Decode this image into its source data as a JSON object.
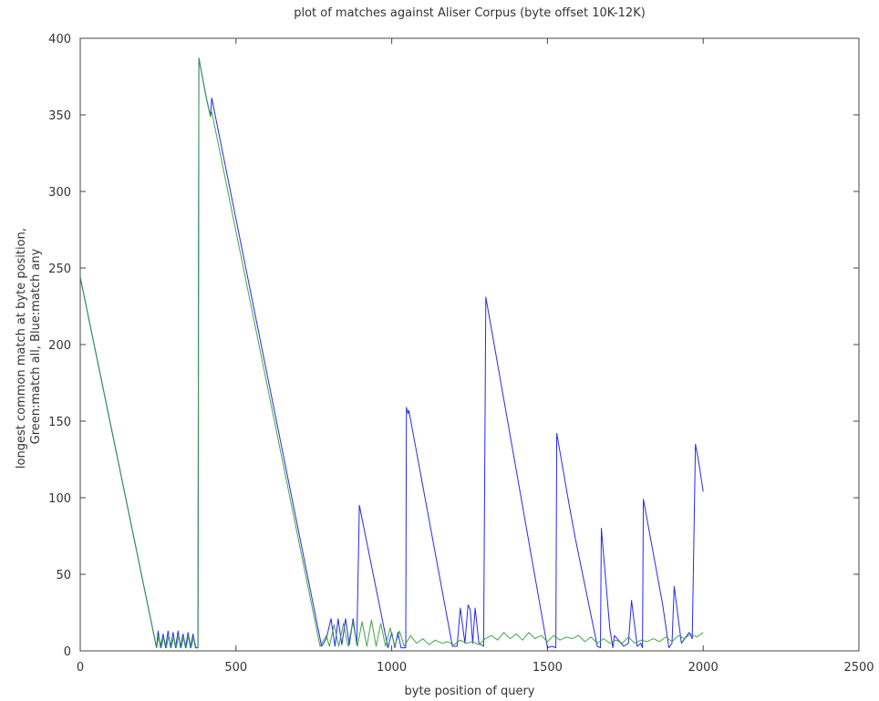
{
  "chart_data": {
    "type": "line",
    "title": "plot of matches against Aliser Corpus (byte offset 10K-12K)",
    "xlabel": "byte position of query",
    "ylabel_lines": [
      "longest common match at byte position,",
      "Green:match all, Blue:match any"
    ],
    "xlim": [
      0,
      2500
    ],
    "ylim": [
      0,
      400
    ],
    "xticks": [
      0,
      500,
      1000,
      1500,
      2000,
      2500
    ],
    "yticks": [
      0,
      50,
      100,
      150,
      200,
      250,
      300,
      350,
      400
    ],
    "grid": false,
    "series": [
      {
        "color": "#0000ff",
        "points": [
          [
            0,
            244
          ],
          [
            245,
            2
          ],
          [
            250,
            13
          ],
          [
            258,
            2
          ],
          [
            266,
            11
          ],
          [
            274,
            2
          ],
          [
            282,
            13
          ],
          [
            290,
            2
          ],
          [
            298,
            12
          ],
          [
            306,
            2
          ],
          [
            314,
            13
          ],
          [
            322,
            2
          ],
          [
            330,
            11
          ],
          [
            338,
            2
          ],
          [
            346,
            12
          ],
          [
            354,
            2
          ],
          [
            362,
            11
          ],
          [
            370,
            2
          ],
          [
            378,
            2
          ],
          [
            381,
            387
          ],
          [
            405,
            361
          ],
          [
            418,
            349
          ],
          [
            422,
            361
          ],
          [
            775,
            3
          ],
          [
            790,
            8
          ],
          [
            805,
            21
          ],
          [
            818,
            3
          ],
          [
            828,
            21
          ],
          [
            840,
            4
          ],
          [
            852,
            21
          ],
          [
            864,
            4
          ],
          [
            876,
            21
          ],
          [
            888,
            4
          ],
          [
            896,
            95
          ],
          [
            988,
            2
          ],
          [
            1000,
            12
          ],
          [
            1010,
            2
          ],
          [
            1020,
            12
          ],
          [
            1030,
            2
          ],
          [
            1045,
            2
          ],
          [
            1047,
            159
          ],
          [
            1052,
            155
          ],
          [
            1055,
            157
          ],
          [
            1195,
            3
          ],
          [
            1210,
            3
          ],
          [
            1220,
            28
          ],
          [
            1235,
            5
          ],
          [
            1245,
            30
          ],
          [
            1252,
            27
          ],
          [
            1260,
            5
          ],
          [
            1268,
            28
          ],
          [
            1280,
            5
          ],
          [
            1295,
            3
          ],
          [
            1302,
            231
          ],
          [
            1500,
            2
          ],
          [
            1515,
            3
          ],
          [
            1527,
            2
          ],
          [
            1530,
            142
          ],
          [
            1570,
            95
          ],
          [
            1590,
            73
          ],
          [
            1660,
            3
          ],
          [
            1670,
            2
          ],
          [
            1673,
            80
          ],
          [
            1700,
            15
          ],
          [
            1710,
            2
          ],
          [
            1715,
            10
          ],
          [
            1745,
            3
          ],
          [
            1760,
            5
          ],
          [
            1770,
            33
          ],
          [
            1788,
            3
          ],
          [
            1800,
            5
          ],
          [
            1805,
            2
          ],
          [
            1808,
            99
          ],
          [
            1870,
            30
          ],
          [
            1890,
            2
          ],
          [
            1900,
            5
          ],
          [
            1907,
            42
          ],
          [
            1930,
            5
          ],
          [
            1955,
            12
          ],
          [
            1965,
            8
          ],
          [
            1975,
            135
          ],
          [
            1985,
            124
          ],
          [
            2000,
            104
          ]
        ]
      },
      {
        "color": "#2e9e2e",
        "points": [
          [
            0,
            244
          ],
          [
            245,
            2
          ],
          [
            252,
            10
          ],
          [
            260,
            2
          ],
          [
            268,
            9
          ],
          [
            276,
            2
          ],
          [
            284,
            10
          ],
          [
            292,
            2
          ],
          [
            300,
            9
          ],
          [
            308,
            2
          ],
          [
            316,
            10
          ],
          [
            324,
            2
          ],
          [
            332,
            9
          ],
          [
            340,
            2
          ],
          [
            348,
            10
          ],
          [
            356,
            2
          ],
          [
            364,
            9
          ],
          [
            372,
            2
          ],
          [
            378,
            2
          ],
          [
            381,
            387
          ],
          [
            405,
            361
          ],
          [
            418,
            349
          ],
          [
            422,
            352
          ],
          [
            770,
            3
          ],
          [
            790,
            10
          ],
          [
            800,
            3
          ],
          [
            815,
            17
          ],
          [
            830,
            3
          ],
          [
            845,
            18
          ],
          [
            860,
            3
          ],
          [
            875,
            19
          ],
          [
            890,
            3
          ],
          [
            905,
            19
          ],
          [
            920,
            3
          ],
          [
            935,
            20
          ],
          [
            950,
            3
          ],
          [
            965,
            18
          ],
          [
            980,
            3
          ],
          [
            995,
            15
          ],
          [
            1010,
            3
          ],
          [
            1025,
            13
          ],
          [
            1040,
            3
          ],
          [
            1060,
            10
          ],
          [
            1080,
            5
          ],
          [
            1100,
            8
          ],
          [
            1120,
            4
          ],
          [
            1140,
            7
          ],
          [
            1160,
            5
          ],
          [
            1180,
            6
          ],
          [
            1200,
            4
          ],
          [
            1220,
            7
          ],
          [
            1240,
            5
          ],
          [
            1260,
            6
          ],
          [
            1280,
            4
          ],
          [
            1300,
            8
          ],
          [
            1320,
            10
          ],
          [
            1340,
            7
          ],
          [
            1360,
            12
          ],
          [
            1380,
            8
          ],
          [
            1400,
            11
          ],
          [
            1420,
            7
          ],
          [
            1440,
            12
          ],
          [
            1460,
            8
          ],
          [
            1480,
            10
          ],
          [
            1500,
            6
          ],
          [
            1520,
            10
          ],
          [
            1540,
            7
          ],
          [
            1560,
            9
          ],
          [
            1580,
            8
          ],
          [
            1600,
            10
          ],
          [
            1620,
            6
          ],
          [
            1640,
            9
          ],
          [
            1660,
            5
          ],
          [
            1680,
            8
          ],
          [
            1700,
            5
          ],
          [
            1720,
            7
          ],
          [
            1740,
            5
          ],
          [
            1760,
            9
          ],
          [
            1780,
            5
          ],
          [
            1800,
            7
          ],
          [
            1820,
            6
          ],
          [
            1840,
            8
          ],
          [
            1860,
            6
          ],
          [
            1880,
            9
          ],
          [
            1900,
            6
          ],
          [
            1920,
            10
          ],
          [
            1940,
            8
          ],
          [
            1960,
            11
          ],
          [
            1980,
            9
          ],
          [
            2000,
            12
          ]
        ]
      }
    ]
  }
}
